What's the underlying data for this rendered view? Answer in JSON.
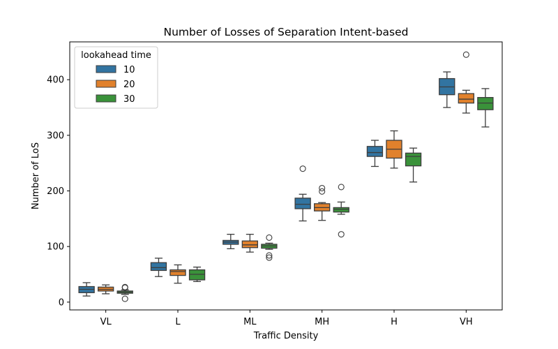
{
  "chart_data": {
    "type": "box",
    "title": "Number of Losses of Separation Intent-based",
    "xlabel": "Traffic Density",
    "ylabel": "Number of LoS",
    "categories": [
      "VL",
      "L",
      "ML",
      "MH",
      "H",
      "VH"
    ],
    "ylim": [
      -14,
      468
    ],
    "yticks": [
      0,
      100,
      200,
      300,
      400
    ],
    "grid": false,
    "legend": {
      "title": "lookahead time",
      "placement": "top-left"
    },
    "series": [
      {
        "name": "10",
        "color": "#3274a1",
        "boxes": [
          {
            "whislo": 11,
            "q1": 17,
            "med": 23,
            "q3": 28,
            "whishi": 35,
            "fliers": []
          },
          {
            "whislo": 46,
            "q1": 57,
            "med": 62,
            "q3": 71,
            "whishi": 79,
            "fliers": []
          },
          {
            "whislo": 96,
            "q1": 104,
            "med": 108,
            "q3": 111,
            "whishi": 122,
            "fliers": []
          },
          {
            "whislo": 146,
            "q1": 168,
            "med": 176,
            "q3": 187,
            "whishi": 194,
            "fliers": [
              240
            ]
          },
          {
            "whislo": 244,
            "q1": 262,
            "med": 269,
            "q3": 280,
            "whishi": 291,
            "fliers": []
          },
          {
            "whislo": 350,
            "q1": 373,
            "med": 387,
            "q3": 402,
            "whishi": 414,
            "fliers": []
          }
        ]
      },
      {
        "name": "20",
        "color": "#e1812c",
        "boxes": [
          {
            "whislo": 15,
            "q1": 20,
            "med": 23,
            "q3": 27,
            "whishi": 31,
            "fliers": []
          },
          {
            "whislo": 34,
            "q1": 48,
            "med": 55,
            "q3": 58,
            "whishi": 67,
            "fliers": []
          },
          {
            "whislo": 90,
            "q1": 98,
            "med": 103,
            "q3": 110,
            "whishi": 122,
            "fliers": []
          },
          {
            "whislo": 147,
            "q1": 164,
            "med": 170,
            "q3": 177,
            "whishi": 179,
            "fliers": [
              199,
              205
            ]
          },
          {
            "whislo": 241,
            "q1": 259,
            "med": 275,
            "q3": 291,
            "whishi": 308,
            "fliers": []
          },
          {
            "whislo": 340,
            "q1": 358,
            "med": 365,
            "q3": 375,
            "whishi": 381,
            "fliers": [
              445
            ]
          }
        ]
      },
      {
        "name": "30",
        "color": "#3a923a",
        "boxes": [
          {
            "whislo": 14,
            "q1": 16,
            "med": 18,
            "q3": 20,
            "whishi": 22,
            "fliers": [
              6,
              26,
              27
            ]
          },
          {
            "whislo": 37,
            "q1": 40,
            "med": 50,
            "q3": 58,
            "whishi": 63,
            "fliers": []
          },
          {
            "whislo": 95,
            "q1": 97,
            "med": 101,
            "q3": 104,
            "whishi": 106,
            "fliers": [
              80,
              84,
              116
            ]
          },
          {
            "whislo": 158,
            "q1": 162,
            "med": 167,
            "q3": 170,
            "whishi": 180,
            "fliers": [
              122,
              207
            ]
          },
          {
            "whislo": 216,
            "q1": 245,
            "med": 262,
            "q3": 268,
            "whishi": 277,
            "fliers": []
          },
          {
            "whislo": 315,
            "q1": 346,
            "med": 358,
            "q3": 368,
            "whishi": 384,
            "fliers": []
          }
        ]
      }
    ]
  }
}
